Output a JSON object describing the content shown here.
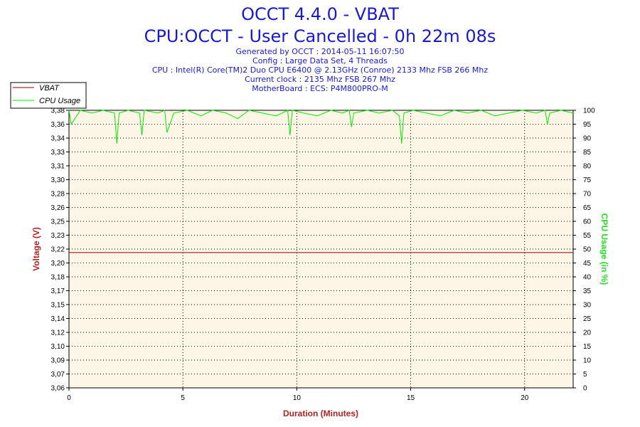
{
  "title": "OCCT 4.4.0 - VBAT",
  "subtitle": "CPU:OCCT - User Cancelled - 0h 22m 08s",
  "info": [
    "Generated by OCCT : 2014-05-11 16:07:50",
    "Config : Large Data Set, 4 Threads",
    "CPU : Intel(R) Core(TM)2 Duo CPU E6400 @ 2.13GHz (Conroe) 2133 Mhz FSB 266 Mhz",
    "Current clock : 2135 Mhz FSB 267 Mhz",
    "MotherBoard : ECS: P4M800PRO-M"
  ],
  "colors": {
    "title": "#1a1acc",
    "plot_bg": "#fdf5e6",
    "vbat": "#8b0000",
    "cpu": "#00ee00",
    "axis_label_left": "#b22222",
    "axis_label_right": "#22dd22",
    "xlabel": "#b22222"
  },
  "chart_data": {
    "type": "line",
    "xlabel": "Duration (Minutes)",
    "ylabel_left": "Voltage (V)",
    "ylabel_right": "CPU Usage (in %)",
    "xlim": [
      0,
      22.13
    ],
    "x_ticks": [
      "0",
      "5",
      "10",
      "15",
      "20"
    ],
    "x_tick_values": [
      0,
      5,
      10,
      15,
      20
    ],
    "ylim_left": [
      3.06,
      3.38
    ],
    "y_left_ticks": [
      "3,06",
      "3,07",
      "3,09",
      "3,10",
      "3,12",
      "3,14",
      "3,15",
      "3,17",
      "3,18",
      "3,20",
      "3,22",
      "3,23",
      "3,25",
      "3,26",
      "3,28",
      "3,30",
      "3,31",
      "3,33",
      "3,34",
      "3,36",
      "3,38"
    ],
    "ylim_right": [
      0,
      100
    ],
    "y_right_ticks": [
      "0",
      "5",
      "10",
      "15",
      "20",
      "25",
      "30",
      "35",
      "40",
      "45",
      "50",
      "55",
      "60",
      "65",
      "70",
      "75",
      "80",
      "85",
      "90",
      "95",
      "100"
    ],
    "grid": true,
    "legend_position": "top-left",
    "series": [
      {
        "name": "VBAT",
        "axis": "left",
        "x": [
          0,
          22.13
        ],
        "values": [
          3.216,
          3.216
        ]
      },
      {
        "name": "CPU Usage",
        "axis": "right",
        "x": [
          0,
          0.1,
          0.5,
          1.0,
          1.5,
          2.0,
          2.1,
          2.2,
          2.6,
          3.1,
          3.2,
          3.3,
          3.9,
          4.2,
          4.3,
          4.6,
          5.2,
          5.8,
          6.3,
          6.9,
          7.4,
          7.9,
          8.5,
          9.1,
          9.6,
          9.7,
          9.8,
          10.3,
          10.9,
          11.5,
          12.0,
          12.3,
          12.4,
          12.5,
          13.1,
          13.6,
          14.2,
          14.5,
          14.6,
          14.7,
          15.1,
          15.7,
          16.3,
          16.9,
          17.5,
          18.1,
          18.7,
          19.3,
          19.9,
          20.5,
          20.9,
          21.0,
          21.1,
          21.6,
          22.13
        ],
        "values": [
          100,
          95,
          100,
          99,
          100,
          99,
          88,
          99,
          100,
          99,
          91,
          100,
          99,
          100,
          92,
          99,
          100,
          98,
          100,
          99,
          97,
          100,
          99,
          98,
          100,
          91,
          100,
          99,
          98,
          100,
          99,
          100,
          94,
          99,
          100,
          99,
          100,
          98,
          88,
          99,
          100,
          99,
          98,
          100,
          99,
          100,
          98,
          99,
          100,
          99,
          100,
          95,
          99,
          100,
          99
        ]
      }
    ]
  }
}
